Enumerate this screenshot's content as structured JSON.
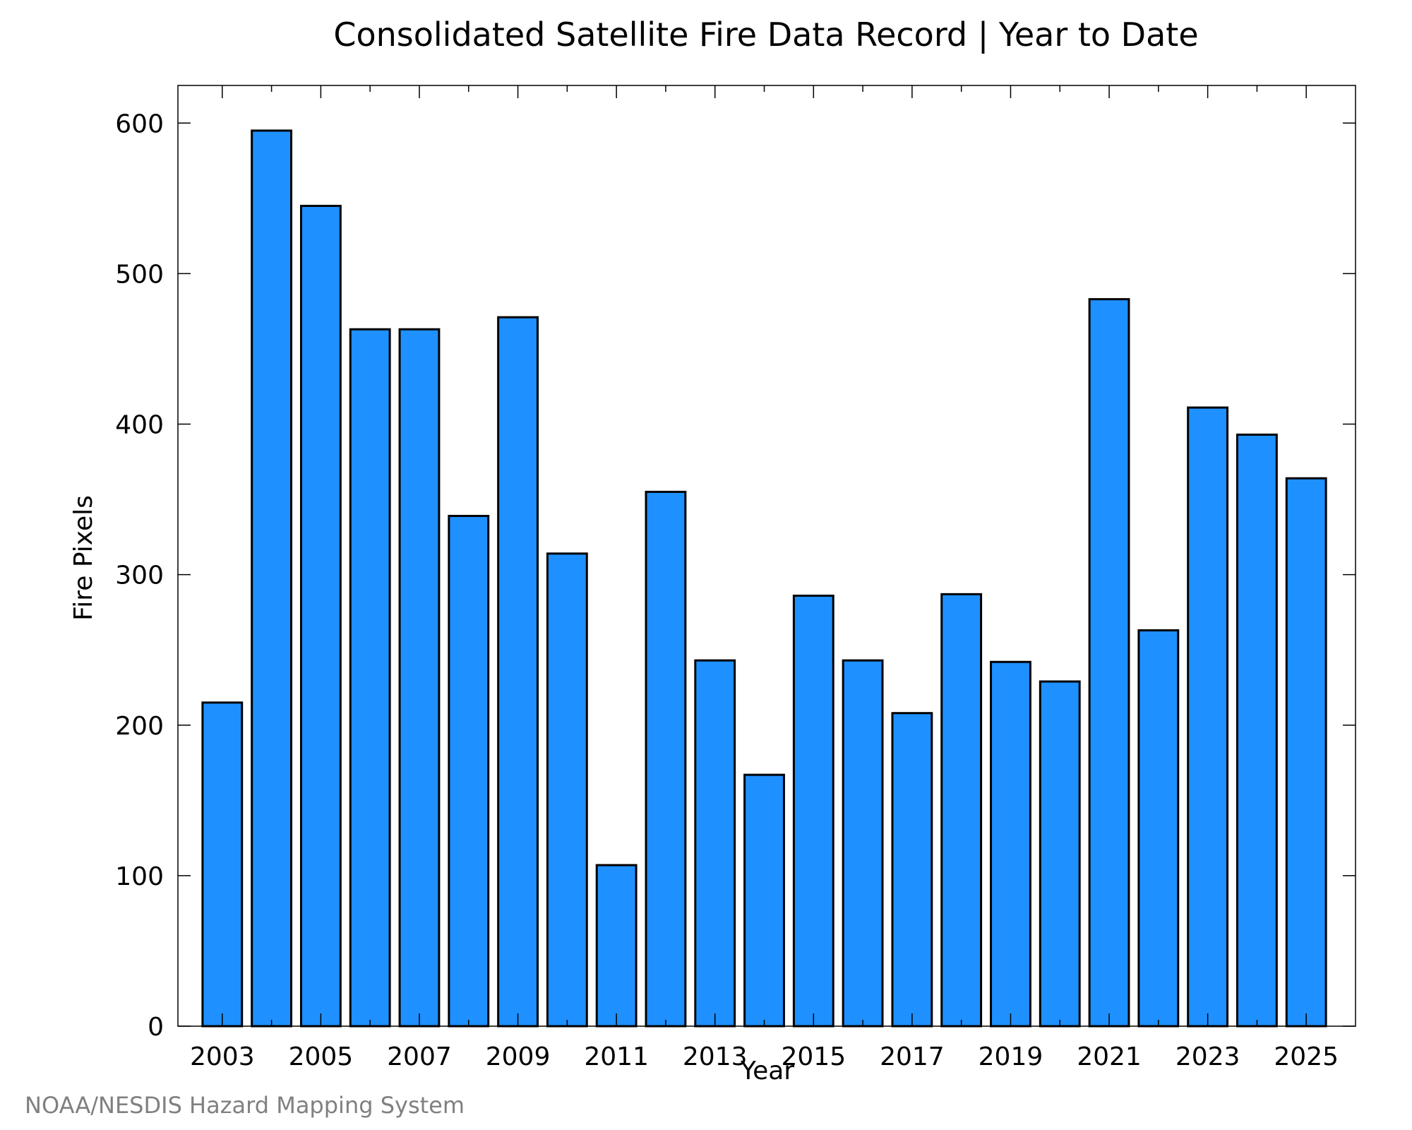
{
  "chart_data": {
    "type": "bar",
    "title": "Consolidated Satellite Fire Data Record | Year to Date",
    "xlabel": "Year",
    "ylabel": "Fire Pixels",
    "ylim": [
      0,
      625
    ],
    "xlim": [
      2002.1,
      2026.0
    ],
    "yticks": [
      0,
      100,
      200,
      300,
      400,
      500,
      600
    ],
    "xticks": [
      2003,
      2005,
      2007,
      2009,
      2011,
      2013,
      2015,
      2017,
      2019,
      2021,
      2023,
      2025
    ],
    "x_minor_ticks": [
      2004,
      2006,
      2008,
      2010,
      2012,
      2014,
      2016,
      2018,
      2020,
      2022,
      2024
    ],
    "grid": false,
    "bar_color": "#1e90ff",
    "edge_color": "#000000",
    "categories": [
      2003,
      2004,
      2005,
      2006,
      2007,
      2008,
      2009,
      2010,
      2011,
      2012,
      2013,
      2014,
      2015,
      2016,
      2017,
      2018,
      2019,
      2020,
      2021,
      2022,
      2023,
      2024,
      2025
    ],
    "values": [
      215,
      595,
      545,
      463,
      463,
      339,
      471,
      314,
      107,
      355,
      243,
      167,
      286,
      243,
      208,
      287,
      242,
      229,
      483,
      263,
      411,
      393,
      364
    ]
  },
  "footer": {
    "credit": "NOAA/NESDIS Hazard Mapping System"
  }
}
